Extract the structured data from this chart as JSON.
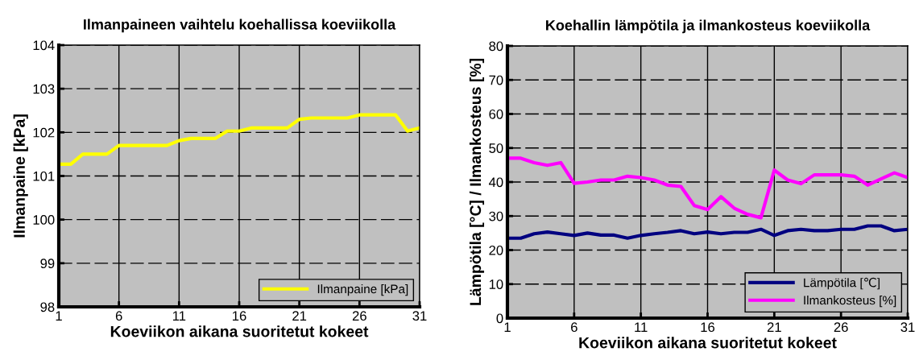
{
  "chart_data": [
    {
      "type": "line",
      "title": "Ilmanpaineen vaihtelu koehallissa koeviikolla",
      "xlabel": "Koeviikon aikana suoritetut kokeet",
      "ylabel": "Ilmanpaine [kPa]",
      "x": [
        1,
        2,
        3,
        4,
        5,
        6,
        7,
        8,
        9,
        10,
        11,
        12,
        13,
        14,
        15,
        16,
        17,
        18,
        19,
        20,
        21,
        22,
        23,
        24,
        25,
        26,
        27,
        28,
        29,
        30,
        31
      ],
      "series": [
        {
          "name": "Ilmanpaine [kPa]",
          "color": "#ffff00",
          "values": [
            101.27,
            101.27,
            101.5,
            101.5,
            101.5,
            101.7,
            101.7,
            101.7,
            101.7,
            101.7,
            101.81,
            101.86,
            101.86,
            101.86,
            102.03,
            102.03,
            102.1,
            102.1,
            102.1,
            102.1,
            102.3,
            102.33,
            102.33,
            102.33,
            102.33,
            102.4,
            102.4,
            102.4,
            102.4,
            102.03,
            102.1
          ]
        }
      ],
      "xlim": [
        1,
        31
      ],
      "xticks": [
        1,
        6,
        11,
        16,
        21,
        26,
        31
      ],
      "ylim": [
        98,
        104
      ],
      "yticks": [
        98,
        99,
        100,
        101,
        102,
        103,
        104
      ],
      "grid": true,
      "legend": "bottom right",
      "marker": "none",
      "line_style": "solid"
    },
    {
      "type": "line",
      "title": "Koehallin lämpötila ja ilmankosteus koeviikolla",
      "xlabel": "Koeviikon aikana suoritetut kokeet",
      "ylabel": "Lämpötila [°C] / Ilmankosteus [%]",
      "x": [
        1,
        2,
        3,
        4,
        5,
        6,
        7,
        8,
        9,
        10,
        11,
        12,
        13,
        14,
        15,
        16,
        17,
        18,
        19,
        20,
        21,
        22,
        23,
        24,
        25,
        26,
        27,
        28,
        29,
        30,
        31
      ],
      "series": [
        {
          "name": "Lämpötila [℃]",
          "color": "#000080",
          "values": [
            23.5,
            23.5,
            24.8,
            25.3,
            24.8,
            24.3,
            25.0,
            24.4,
            24.4,
            23.5,
            24.3,
            24.8,
            25.2,
            25.7,
            24.8,
            25.3,
            24.8,
            25.2,
            25.2,
            26.1,
            24.3,
            25.7,
            26.1,
            25.7,
            25.7,
            26.1,
            26.1,
            27.1,
            27.1,
            25.7,
            26.1
          ]
        },
        {
          "name": "Ilmankosteus [%]",
          "color": "#ff00ff",
          "values": [
            47.0,
            47.0,
            45.7,
            44.9,
            45.7,
            39.6,
            40.0,
            40.6,
            40.6,
            41.7,
            41.3,
            40.6,
            39.1,
            38.7,
            33.1,
            31.9,
            35.7,
            32.3,
            30.5,
            29.5,
            43.5,
            40.6,
            39.5,
            42.1,
            42.1,
            42.1,
            41.7,
            39.1,
            40.9,
            42.7,
            41.3
          ]
        }
      ],
      "xlim": [
        1,
        31
      ],
      "xticks": [
        1,
        6,
        11,
        16,
        21,
        26,
        31
      ],
      "ylim": [
        0,
        80
      ],
      "yticks": [
        0,
        10,
        20,
        30,
        40,
        50,
        60,
        70,
        80
      ],
      "grid": true,
      "legend": "bottom right",
      "marker": "none",
      "line_style": "solid"
    }
  ]
}
